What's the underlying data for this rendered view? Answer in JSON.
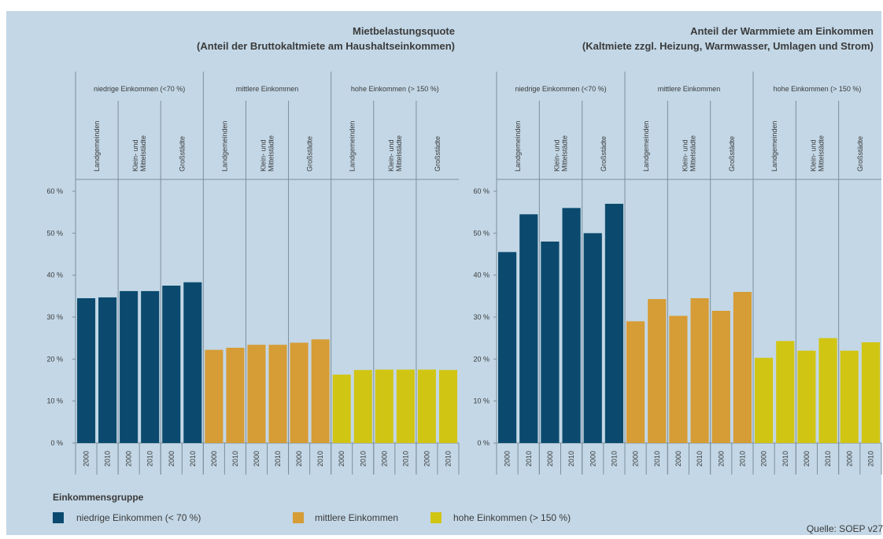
{
  "colors": {
    "background": "#c3d7e6",
    "niedrig": "#0b4a6e",
    "mittel": "#d69c35",
    "hoch": "#d1c514",
    "grid": "#7c8f9c",
    "text": "#3b3b3b"
  },
  "legend": {
    "title": "Einkommensgruppe",
    "items": [
      {
        "label": "niedrige Einkommen (< 70 %)",
        "color_key": "niedrig"
      },
      {
        "label": "mittlere Einkommen",
        "color_key": "mittel"
      },
      {
        "label": "hohe Einkommen (> 150 %)",
        "color_key": "hoch"
      }
    ]
  },
  "source": "Quelle: SOEP v27",
  "chart_data": [
    {
      "type": "bar",
      "title": "Mietbelastungsquote",
      "subtitle": "(Anteil der Bruttokaltmiete am Haushaltseinkommen)",
      "groups": [
        "niedrige Einkommen (<70 %)",
        "mittlere Einkommen",
        "hohe Einkommen (> 150 %)"
      ],
      "subgroups": [
        "Landgemeinden",
        "Klein- und Mittelstädte",
        "Großstädte"
      ],
      "categories": [
        "2000",
        "2010",
        "2000",
        "2010",
        "2000",
        "2010",
        "2000",
        "2010",
        "2000",
        "2010",
        "2000",
        "2010",
        "2000",
        "2010",
        "2000",
        "2010",
        "2000",
        "2010"
      ],
      "values": [
        34.5,
        34.7,
        36.2,
        36.2,
        37.5,
        38.3,
        22.2,
        22.7,
        23.4,
        23.4,
        23.9,
        24.7,
        16.3,
        17.4,
        17.5,
        17.5,
        17.5,
        17.4
      ],
      "color_keys": [
        "niedrig",
        "niedrig",
        "niedrig",
        "niedrig",
        "niedrig",
        "niedrig",
        "mittel",
        "mittel",
        "mittel",
        "mittel",
        "mittel",
        "mittel",
        "hoch",
        "hoch",
        "hoch",
        "hoch",
        "hoch",
        "hoch"
      ],
      "yticks": [
        "0 %",
        "10 %",
        "20 %",
        "30 %",
        "40 %",
        "50 %",
        "60 %"
      ],
      "ylim": [
        0,
        60
      ],
      "grid": false
    },
    {
      "type": "bar",
      "title": "Anteil der Warmmiete am Einkommen",
      "subtitle": "(Kaltmiete zzgl. Heizung, Warmwasser, Umlagen und Strom)",
      "groups": [
        "niedrige Einkommen (<70 %)",
        "mittlere Einkommen",
        "hohe Einkommen (> 150 %)"
      ],
      "subgroups": [
        "Landgemeinden",
        "Klein- und Mittelstädte",
        "Großstädte"
      ],
      "categories": [
        "2000",
        "2010",
        "2000",
        "2010",
        "2000",
        "2010",
        "2000",
        "2010",
        "2000",
        "2010",
        "2000",
        "2010",
        "2000",
        "2010",
        "2000",
        "2010",
        "2000",
        "2010"
      ],
      "values": [
        45.5,
        54.5,
        48.0,
        56.0,
        50.0,
        57.0,
        29.0,
        34.3,
        30.3,
        34.5,
        31.5,
        36.0,
        20.3,
        24.3,
        22.0,
        25.0,
        22.0,
        24.0
      ],
      "color_keys": [
        "niedrig",
        "niedrig",
        "niedrig",
        "niedrig",
        "niedrig",
        "niedrig",
        "mittel",
        "mittel",
        "mittel",
        "mittel",
        "mittel",
        "mittel",
        "hoch",
        "hoch",
        "hoch",
        "hoch",
        "hoch",
        "hoch"
      ],
      "yticks": [
        "0 %",
        "10 %",
        "20 %",
        "30 %",
        "40 %",
        "50 %",
        "60 %"
      ],
      "ylim": [
        0,
        60
      ],
      "grid": false
    }
  ]
}
